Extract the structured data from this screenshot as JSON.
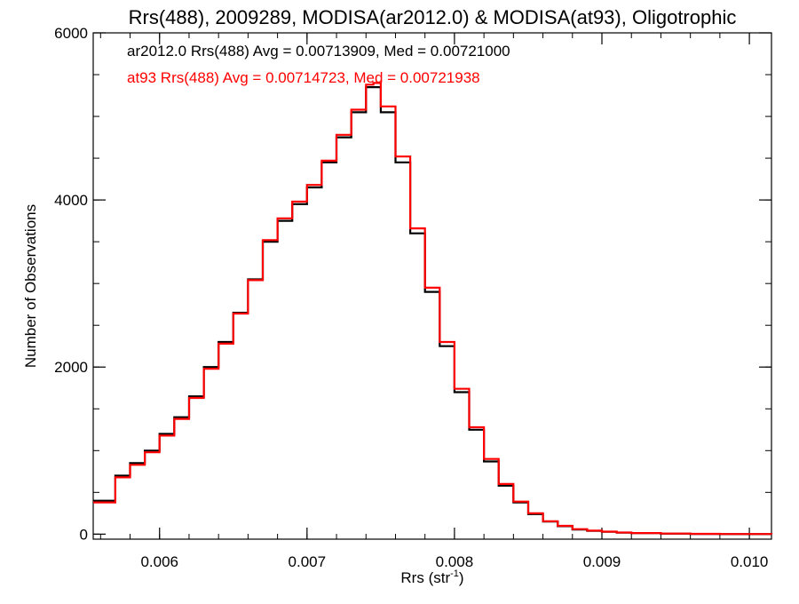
{
  "chart_data": {
    "type": "line",
    "step": true,
    "title": "Rrs(488), 2009289, MODISA(ar2012.0) & MODISA(at93), Oligotrophic",
    "xlabel": "Rrs (str",
    "xlabel_sup": "-1",
    "xlabel_close": ")",
    "ylabel": "Number of Observations",
    "xlim": [
      0.00555,
      0.01015
    ],
    "ylim": [
      -60,
      6000
    ],
    "x_ticks": [
      0.006,
      0.007,
      0.008,
      0.009,
      0.01
    ],
    "x_tick_labels": [
      "0.006",
      "0.007",
      "0.008",
      "0.009",
      "0.010"
    ],
    "x_minor_step": 0.0002,
    "y_ticks": [
      0,
      2000,
      4000,
      6000
    ],
    "y_tick_labels": [
      "0",
      "2000",
      "4000",
      "6000"
    ],
    "y_minor_step": 500,
    "grid": false,
    "annotations": [
      {
        "text": "ar2012.0 Rrs(488) Avg = 0.00713909, Med = 0.00721000",
        "color": "#000000"
      },
      {
        "text": "at93 Rrs(488) Avg = 0.00714723, Med = 0.00721938",
        "color": "#ff0000"
      }
    ],
    "series": [
      {
        "color": "#000000",
        "x": [
          0.00555,
          0.0057,
          0.0058,
          0.0059,
          0.006,
          0.0061,
          0.0062,
          0.0063,
          0.0064,
          0.0065,
          0.0066,
          0.0067,
          0.0068,
          0.0069,
          0.007,
          0.0071,
          0.0072,
          0.0073,
          0.0074,
          0.00745,
          0.0075,
          0.0076,
          0.0077,
          0.0078,
          0.0079,
          0.008,
          0.0081,
          0.0082,
          0.0083,
          0.0084,
          0.0085,
          0.0086,
          0.0087,
          0.0088,
          0.0089,
          0.009,
          0.0091,
          0.0092,
          0.0094,
          0.0096,
          0.0098,
          0.01015
        ],
        "values": [
          400,
          700,
          850,
          1000,
          1200,
          1400,
          1650,
          2000,
          2300,
          2650,
          3050,
          3500,
          3750,
          3950,
          4150,
          4450,
          4750,
          5050,
          5350,
          5350,
          5050,
          4450,
          3600,
          2900,
          2250,
          1700,
          1250,
          870,
          580,
          380,
          240,
          150,
          95,
          55,
          40,
          28,
          18,
          12,
          6,
          3,
          1,
          0
        ]
      },
      {
        "color": "#ff0000",
        "x": [
          0.00555,
          0.0057,
          0.0058,
          0.0059,
          0.006,
          0.0061,
          0.0062,
          0.0063,
          0.0064,
          0.0065,
          0.0066,
          0.0067,
          0.0068,
          0.0069,
          0.007,
          0.0071,
          0.0072,
          0.0073,
          0.0074,
          0.00745,
          0.0075,
          0.0076,
          0.0077,
          0.0078,
          0.0079,
          0.008,
          0.0081,
          0.0082,
          0.0083,
          0.0084,
          0.0085,
          0.0086,
          0.0087,
          0.0088,
          0.0089,
          0.009,
          0.0091,
          0.0092,
          0.0094,
          0.0096,
          0.0098,
          0.01015
        ],
        "values": [
          380,
          680,
          830,
          980,
          1180,
          1380,
          1630,
          1980,
          2280,
          2640,
          3040,
          3520,
          3780,
          3980,
          4180,
          4470,
          4780,
          5080,
          5380,
          5400,
          5120,
          4520,
          3660,
          2950,
          2300,
          1740,
          1280,
          900,
          600,
          390,
          250,
          155,
          100,
          60,
          42,
          30,
          20,
          13,
          7,
          4,
          2,
          0
        ]
      }
    ]
  }
}
